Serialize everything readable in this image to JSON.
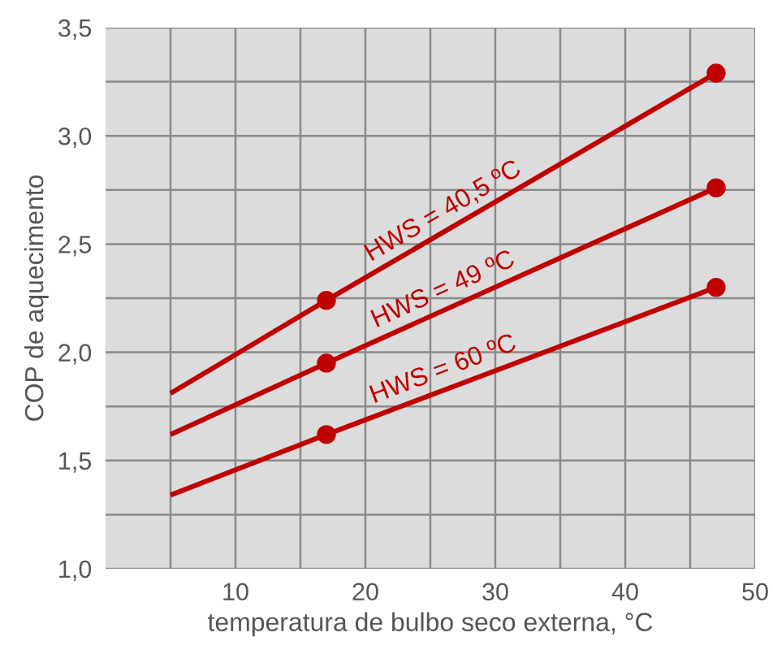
{
  "chart_data": {
    "type": "line",
    "xlabel": "temperatura de bulbo seco externa, °C",
    "ylabel": "COP de aquecimento",
    "xlim": [
      0,
      50
    ],
    "ylim": [
      1.0,
      3.5
    ],
    "xticks": [
      {
        "value": 5,
        "label": null
      },
      10,
      {
        "value": 15,
        "label": null
      },
      20,
      {
        "value": 25,
        "label": null
      },
      30,
      {
        "value": 35,
        "label": null
      },
      40,
      {
        "value": 45,
        "label": null
      },
      50
    ],
    "yticks": [
      {
        "value": 1.0,
        "label": "1,0"
      },
      {
        "value": 1.25,
        "label": null
      },
      {
        "value": 1.5,
        "label": "1,5"
      },
      {
        "value": 1.75,
        "label": null
      },
      {
        "value": 2.0,
        "label": "2,0"
      },
      {
        "value": 2.25,
        "label": null
      },
      {
        "value": 2.5,
        "label": "2,5"
      },
      {
        "value": 2.75,
        "label": null
      },
      {
        "value": 3.0,
        "label": "3,0"
      },
      {
        "value": 3.25,
        "label": null
      },
      {
        "value": 3.5,
        "label": "3,5"
      }
    ],
    "grid": true,
    "legend": false,
    "series": [
      {
        "name": "HWS = 40,5 ºC",
        "color": "#c00000",
        "x": [
          5,
          17,
          47
        ],
        "values": [
          1.81,
          2.24,
          3.29
        ]
      },
      {
        "name": "HWS = 49 ºC",
        "color": "#c00000",
        "x": [
          5,
          17,
          47
        ],
        "values": [
          1.62,
          1.95,
          2.76
        ]
      },
      {
        "name": "HWS = 60 ºC",
        "color": "#c00000",
        "x": [
          5,
          17,
          47
        ],
        "values": [
          1.34,
          1.62,
          2.3
        ]
      },
      {
        "type": "scatter",
        "marker": "circle",
        "color": "#c00000",
        "x": [
          17,
          47
        ],
        "values": [
          2.24,
          3.29
        ]
      },
      {
        "type": "scatter",
        "marker": "circle",
        "color": "#c00000",
        "x": [
          17,
          47
        ],
        "values": [
          1.95,
          2.76
        ]
      },
      {
        "type": "scatter",
        "marker": "circle",
        "color": "#c00000",
        "x": [
          17,
          47
        ],
        "values": [
          1.62,
          2.3
        ]
      }
    ]
  }
}
